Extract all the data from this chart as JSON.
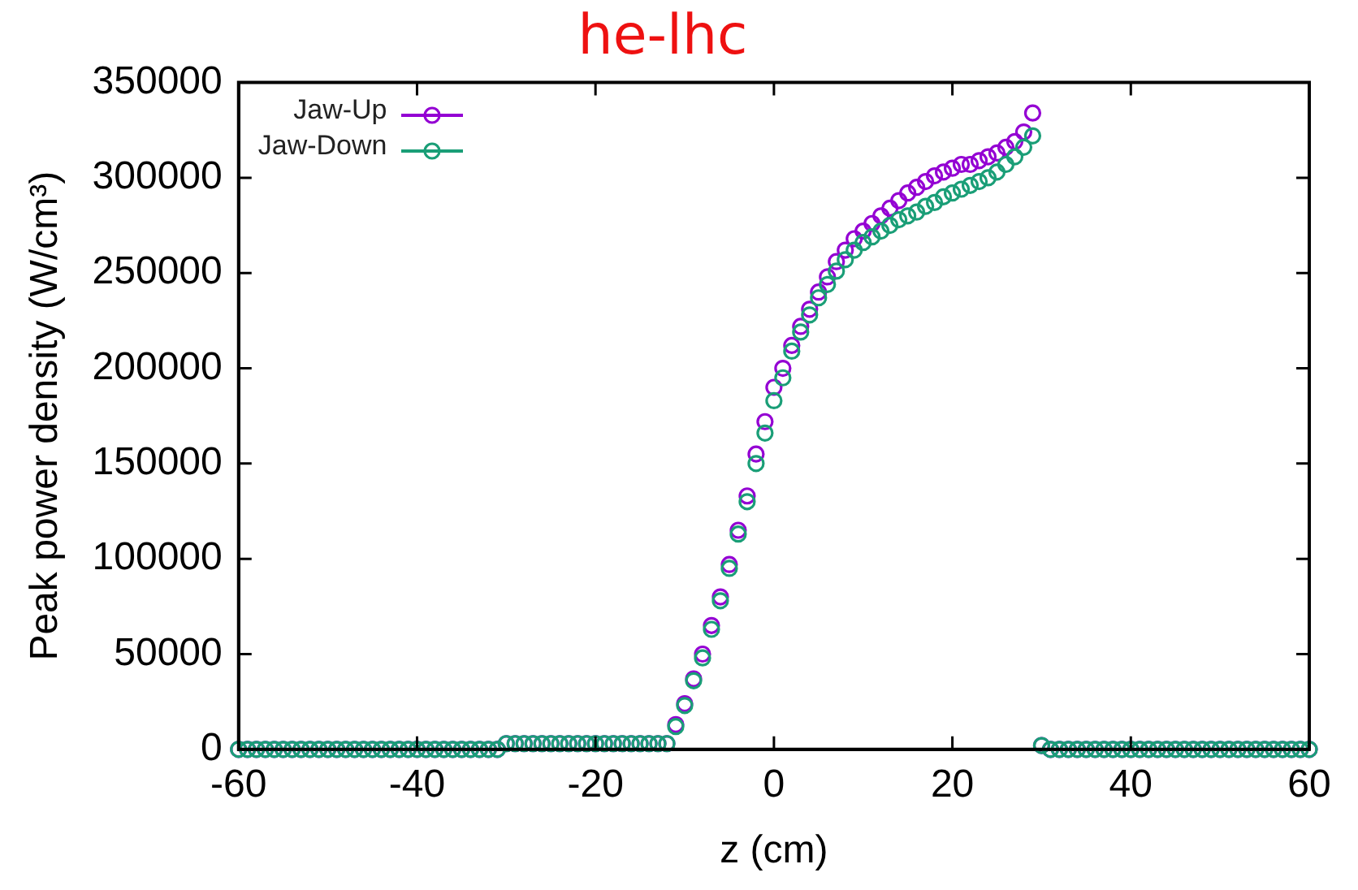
{
  "chart_data": {
    "type": "scatter",
    "title": "he-lhc",
    "xlabel": "z (cm)",
    "ylabel": "Peak power density (W/cm³)",
    "x": [
      -60,
      -59,
      -58,
      -57,
      -56,
      -55,
      -54,
      -53,
      -52,
      -51,
      -50,
      -49,
      -48,
      -47,
      -46,
      -45,
      -44,
      -43,
      -42,
      -41,
      -40,
      -39,
      -38,
      -37,
      -36,
      -35,
      -34,
      -33,
      -32,
      -31,
      -30,
      -29,
      -28,
      -27,
      -26,
      -25,
      -24,
      -23,
      -22,
      -21,
      -20,
      -19,
      -18,
      -17,
      -16,
      -15,
      -14,
      -13,
      -12,
      -11,
      -10,
      -9,
      -8,
      -7,
      -6,
      -5,
      -4,
      -3,
      -2,
      -1,
      0,
      1,
      2,
      3,
      4,
      5,
      6,
      7,
      8,
      9,
      10,
      11,
      12,
      13,
      14,
      15,
      16,
      17,
      18,
      19,
      20,
      21,
      22,
      23,
      24,
      25,
      26,
      27,
      28,
      29,
      30,
      31,
      32,
      33,
      34,
      35,
      36,
      37,
      38,
      39,
      40,
      41,
      42,
      43,
      44,
      45,
      46,
      47,
      48,
      49,
      50,
      51,
      52,
      53,
      54,
      55,
      56,
      57,
      58,
      59,
      60
    ],
    "series": [
      {
        "name": "Jaw-Up",
        "color": "#9400d3",
        "values": [
          0,
          0,
          0,
          0,
          0,
          0,
          0,
          0,
          0,
          0,
          0,
          0,
          0,
          0,
          0,
          0,
          0,
          0,
          0,
          0,
          0,
          0,
          0,
          0,
          0,
          0,
          0,
          0,
          0,
          0,
          3000,
          3000,
          3000,
          3000,
          3000,
          3000,
          3000,
          3000,
          3000,
          3000,
          3000,
          3000,
          3000,
          3000,
          3000,
          3000,
          3000,
          3000,
          3000,
          13000,
          24000,
          37000,
          50000,
          65000,
          80000,
          97000,
          115000,
          133000,
          155000,
          172000,
          190000,
          200000,
          212000,
          222000,
          231000,
          240000,
          248000,
          256000,
          262000,
          268000,
          272000,
          276000,
          280000,
          284000,
          288000,
          292000,
          295000,
          298000,
          301000,
          303000,
          305000,
          307000,
          307000,
          309000,
          311000,
          313000,
          316000,
          319000,
          324000,
          334000,
          2000,
          0,
          0,
          0,
          0,
          0,
          0,
          0,
          0,
          0,
          0,
          0,
          0,
          0,
          0,
          0,
          0,
          0,
          0,
          0,
          0,
          0,
          0,
          0,
          0,
          0,
          0,
          0,
          0,
          0,
          0
        ]
      },
      {
        "name": "Jaw-Down",
        "color": "#1a9e77",
        "values": [
          0,
          0,
          0,
          0,
          0,
          0,
          0,
          0,
          0,
          0,
          0,
          0,
          0,
          0,
          0,
          0,
          0,
          0,
          0,
          0,
          0,
          0,
          0,
          0,
          0,
          0,
          0,
          0,
          0,
          0,
          3000,
          3000,
          3000,
          3000,
          3000,
          3000,
          3000,
          3000,
          3000,
          3000,
          3000,
          3000,
          3000,
          3000,
          3000,
          3000,
          3000,
          3000,
          3000,
          12000,
          23000,
          36000,
          48000,
          63000,
          78000,
          95000,
          113000,
          130000,
          150000,
          166000,
          183000,
          195000,
          209000,
          219000,
          228000,
          237000,
          244000,
          251000,
          257000,
          262000,
          266000,
          269000,
          272000,
          275000,
          278000,
          280000,
          282000,
          285000,
          287000,
          290000,
          292000,
          294000,
          296000,
          298000,
          300000,
          303000,
          307000,
          311000,
          316000,
          322000,
          2000,
          0,
          0,
          0,
          0,
          0,
          0,
          0,
          0,
          0,
          0,
          0,
          0,
          0,
          0,
          0,
          0,
          0,
          0,
          0,
          0,
          0,
          0,
          0,
          0,
          0,
          0,
          0,
          0,
          0,
          0
        ]
      }
    ],
    "xlim": [
      -60,
      60
    ],
    "xticks": [
      -60,
      -40,
      -20,
      0,
      20,
      40,
      60
    ],
    "ylim": [
      0,
      350000
    ],
    "yticks": [
      0,
      50000,
      100000,
      150000,
      200000,
      250000,
      300000,
      350000
    ],
    "grid": false,
    "legend": "top left",
    "marker": "circle"
  }
}
